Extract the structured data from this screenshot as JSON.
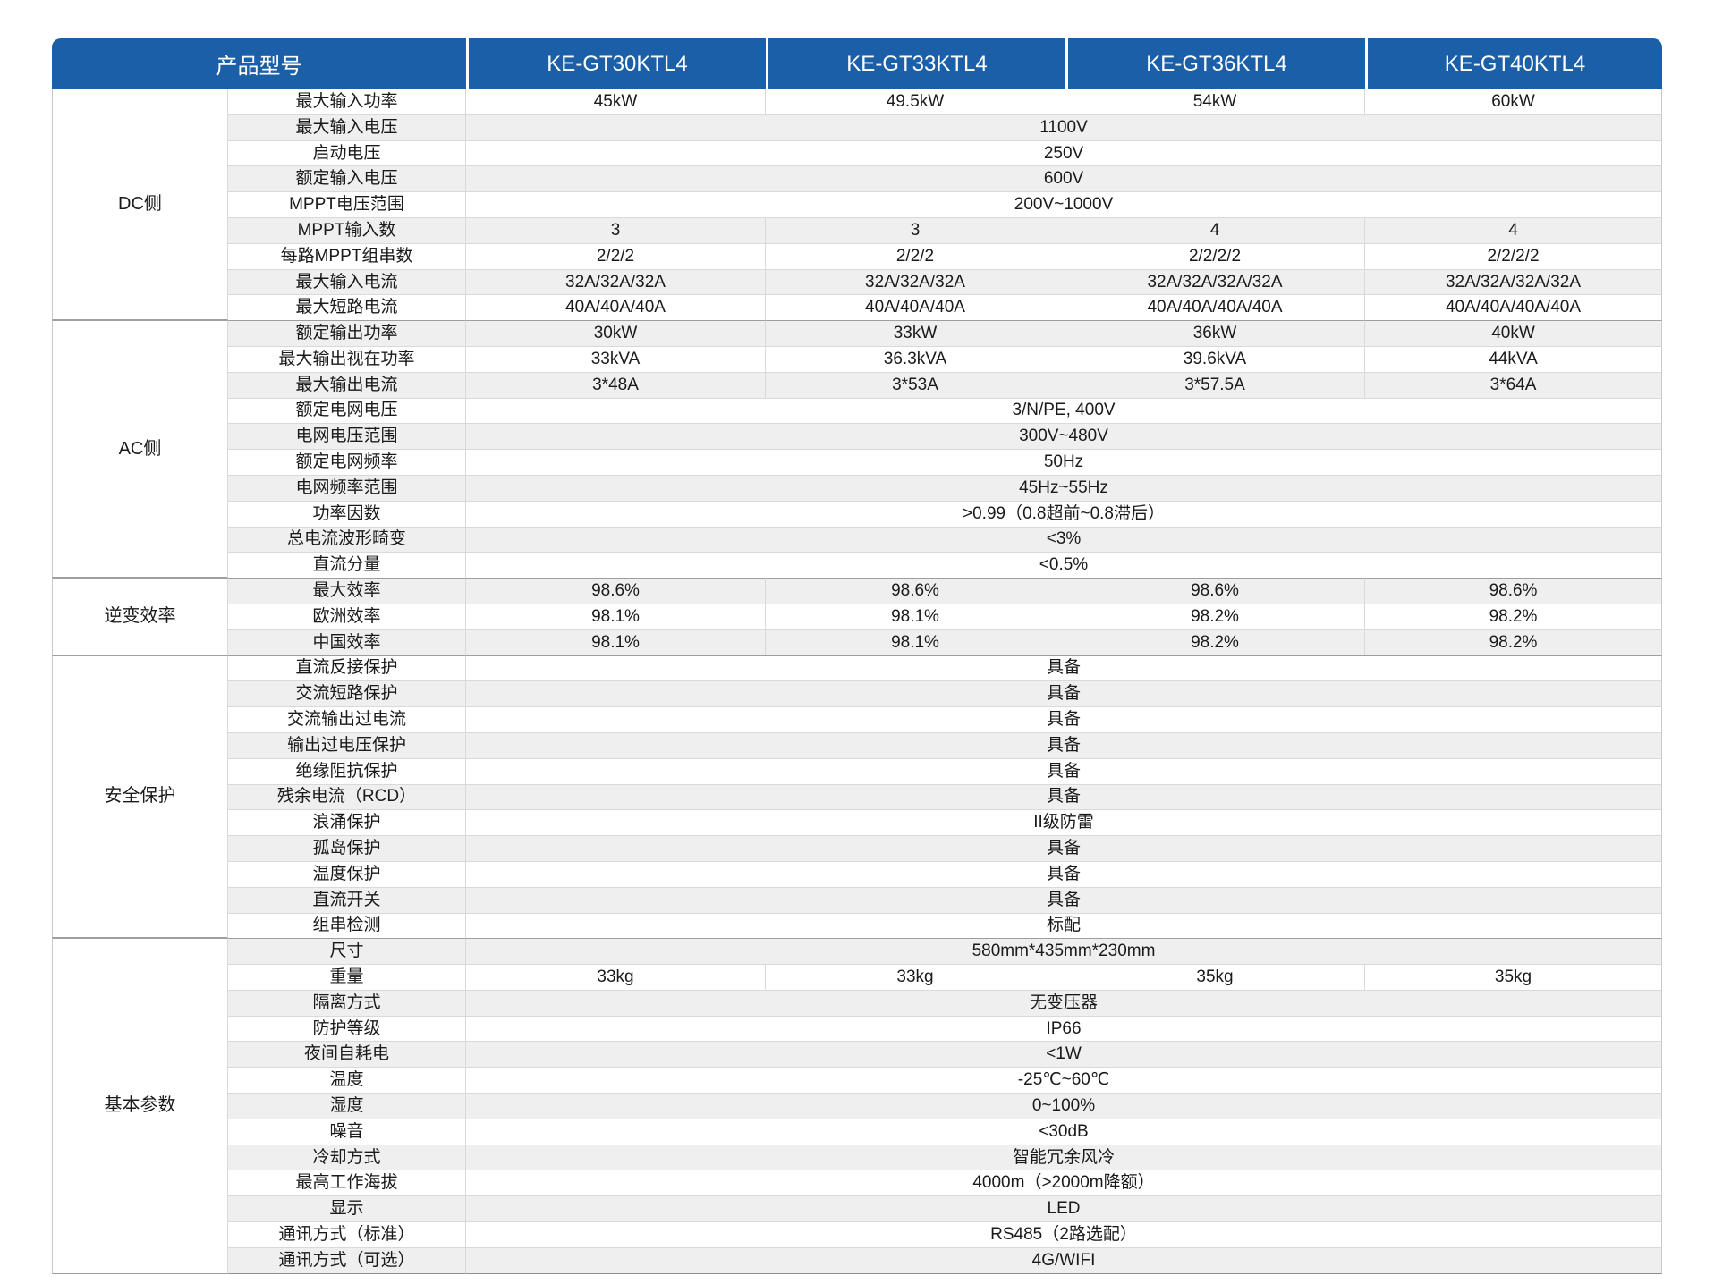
{
  "colors": {
    "header_bg": "#1A5FA8",
    "header_text": "#ffffff",
    "zebra_row": "#efefef",
    "row_border": "#d9d9d9",
    "group_border": "#9e9e9e",
    "text": "#1a1a1a"
  },
  "table": {
    "header": {
      "product_label": "产品型号",
      "models": [
        "KE-GT30KTL4",
        "KE-GT33KTL4",
        "KE-GT36KTL4",
        "KE-GT40KTL4"
      ]
    },
    "groups": [
      {
        "name": "DC侧",
        "rows": [
          {
            "label": "最大输入功率",
            "values": [
              "45kW",
              "49.5kW",
              "54kW",
              "60kW"
            ]
          },
          {
            "label": "最大输入电压",
            "span": "1100V"
          },
          {
            "label": "启动电压",
            "span": "250V"
          },
          {
            "label": "额定输入电压",
            "span": "600V"
          },
          {
            "label": "MPPT电压范围",
            "span": "200V~1000V"
          },
          {
            "label": "MPPT输入数",
            "values": [
              "3",
              "3",
              "4",
              "4"
            ]
          },
          {
            "label": "每路MPPT组串数",
            "values": [
              "2/2/2",
              "2/2/2",
              "2/2/2/2",
              "2/2/2/2"
            ]
          },
          {
            "label": "最大输入电流",
            "values": [
              "32A/32A/32A",
              "32A/32A/32A",
              "32A/32A/32A/32A",
              "32A/32A/32A/32A"
            ]
          },
          {
            "label": "最大短路电流",
            "values": [
              "40A/40A/40A",
              "40A/40A/40A",
              "40A/40A/40A/40A",
              "40A/40A/40A/40A"
            ]
          }
        ]
      },
      {
        "name": "AC侧",
        "rows": [
          {
            "label": "额定输出功率",
            "values": [
              "30kW",
              "33kW",
              "36kW",
              "40kW"
            ]
          },
          {
            "label": "最大输出视在功率",
            "values": [
              "33kVA",
              "36.3kVA",
              "39.6kVA",
              "44kVA"
            ]
          },
          {
            "label": "最大输出电流",
            "values": [
              "3*48A",
              "3*53A",
              "3*57.5A",
              "3*64A"
            ]
          },
          {
            "label": "额定电网电压",
            "span": "3/N/PE, 400V"
          },
          {
            "label": "电网电压范围",
            "span": "300V~480V"
          },
          {
            "label": "额定电网频率",
            "span": "50Hz"
          },
          {
            "label": "电网频率范围",
            "span": "45Hz~55Hz"
          },
          {
            "label": "功率因数",
            "span": ">0.99（0.8超前~0.8滞后）"
          },
          {
            "label": "总电流波形畸变",
            "span": "<3%"
          },
          {
            "label": "直流分量",
            "span": "<0.5%"
          }
        ]
      },
      {
        "name": "逆变效率",
        "rows": [
          {
            "label": "最大效率",
            "values": [
              "98.6%",
              "98.6%",
              "98.6%",
              "98.6%"
            ]
          },
          {
            "label": "欧洲效率",
            "values": [
              "98.1%",
              "98.1%",
              "98.2%",
              "98.2%"
            ]
          },
          {
            "label": "中国效率",
            "values": [
              "98.1%",
              "98.1%",
              "98.2%",
              "98.2%"
            ]
          }
        ]
      },
      {
        "name": "安全保护",
        "rows": [
          {
            "label": "直流反接保护",
            "span": "具备"
          },
          {
            "label": "交流短路保护",
            "span": "具备"
          },
          {
            "label": "交流输出过电流",
            "span": "具备"
          },
          {
            "label": "输出过电压保护",
            "span": "具备"
          },
          {
            "label": "绝缘阻抗保护",
            "span": "具备"
          },
          {
            "label": "残余电流（RCD）",
            "span": "具备"
          },
          {
            "label": "浪涌保护",
            "span": "II级防雷"
          },
          {
            "label": "孤岛保护",
            "span": "具备"
          },
          {
            "label": "温度保护",
            "span": "具备"
          },
          {
            "label": "直流开关",
            "span": "具备"
          },
          {
            "label": "组串检测",
            "span": "标配"
          }
        ]
      },
      {
        "name": "基本参数",
        "rows": [
          {
            "label": "尺寸",
            "span": "580mm*435mm*230mm"
          },
          {
            "label": "重量",
            "values": [
              "33kg",
              "33kg",
              "35kg",
              "35kg"
            ]
          },
          {
            "label": "隔离方式",
            "span": "无变压器"
          },
          {
            "label": "防护等级",
            "span": "IP66"
          },
          {
            "label": "夜间自耗电",
            "span": "<1W"
          },
          {
            "label": "温度",
            "span": "-25℃~60℃"
          },
          {
            "label": "湿度",
            "span": "0~100%"
          },
          {
            "label": "噪音",
            "span": "<30dB"
          },
          {
            "label": "冷却方式",
            "span": "智能冗余风冷"
          },
          {
            "label": "最高工作海拔",
            "span": "4000m（>2000m降额）"
          },
          {
            "label": "显示",
            "span": "LED"
          },
          {
            "label": "通讯方式（标准）",
            "span": "RS485（2路选配）"
          },
          {
            "label": "通讯方式（可选）",
            "span": "4G/WIFI"
          }
        ]
      }
    ]
  }
}
